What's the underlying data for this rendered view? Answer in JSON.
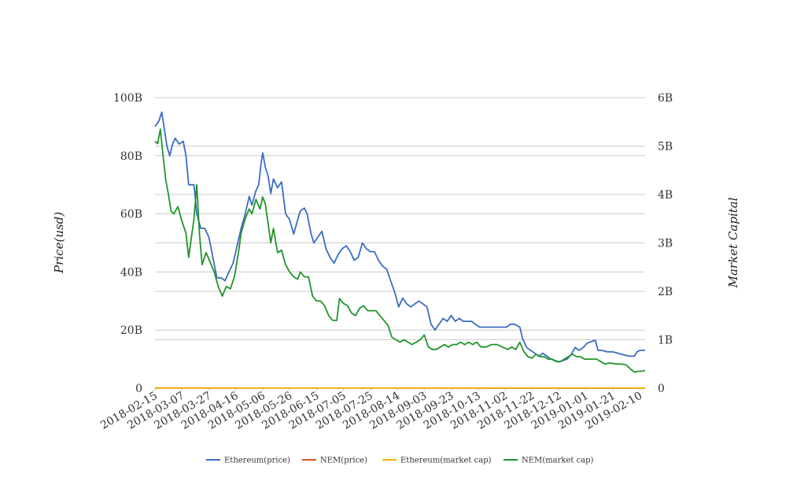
{
  "chart_data": {
    "type": "line",
    "y_left_label": "Price(usd)",
    "y_right_label": "Market Capital",
    "y_left_ticks": [
      "0",
      "20B",
      "40B",
      "60B",
      "80B",
      "100B"
    ],
    "y_right_ticks": [
      "0",
      "1B",
      "2B",
      "3B",
      "4B",
      "5B",
      "6B"
    ],
    "y_left_range": [
      0,
      100
    ],
    "y_right_range": [
      0,
      6
    ],
    "x_range": [
      "2018-02-15",
      "2019-02-14"
    ],
    "x_ticks": [
      "2018-02-15",
      "2018-03-07",
      "2018-03-27",
      "2018-04-16",
      "2018-05-06",
      "2018-05-26",
      "2018-06-15",
      "2018-07-05",
      "2018-07-25",
      "2018-08-14",
      "2018-09-03",
      "2018-09-23",
      "2018-10-13",
      "2018-11-02",
      "2018-11-22",
      "2018-12-12",
      "2019-01-01",
      "2019-01-21",
      "2019-02-10"
    ],
    "grid": true,
    "legend_position": "bottom",
    "units_note": "left axis values in billions USD; right axis values in billions",
    "series": [
      {
        "name": "Ethereum(price)",
        "axis": "left",
        "color": "#3b6cc2",
        "points": [
          [
            "2018-02-15",
            90
          ],
          [
            "2018-02-18",
            92
          ],
          [
            "2018-02-20",
            95
          ],
          [
            "2018-02-22",
            89
          ],
          [
            "2018-02-24",
            83
          ],
          [
            "2018-02-26",
            80
          ],
          [
            "2018-02-28",
            84
          ],
          [
            "2018-03-02",
            86
          ],
          [
            "2018-03-05",
            84
          ],
          [
            "2018-03-08",
            85
          ],
          [
            "2018-03-10",
            80
          ],
          [
            "2018-03-12",
            70
          ],
          [
            "2018-03-14",
            70
          ],
          [
            "2018-03-16",
            70
          ],
          [
            "2018-03-18",
            60
          ],
          [
            "2018-03-21",
            55
          ],
          [
            "2018-03-24",
            55
          ],
          [
            "2018-03-27",
            52
          ],
          [
            "2018-03-30",
            45
          ],
          [
            "2018-04-02",
            38
          ],
          [
            "2018-04-05",
            38
          ],
          [
            "2018-04-08",
            37
          ],
          [
            "2018-04-11",
            40
          ],
          [
            "2018-04-14",
            43
          ],
          [
            "2018-04-17",
            49
          ],
          [
            "2018-04-20",
            55
          ],
          [
            "2018-04-23",
            60
          ],
          [
            "2018-04-26",
            66
          ],
          [
            "2018-04-28",
            63
          ],
          [
            "2018-05-01",
            68
          ],
          [
            "2018-05-03",
            70
          ],
          [
            "2018-05-05",
            78
          ],
          [
            "2018-05-06",
            81
          ],
          [
            "2018-05-08",
            76
          ],
          [
            "2018-05-10",
            73
          ],
          [
            "2018-05-12",
            67
          ],
          [
            "2018-05-14",
            72
          ],
          [
            "2018-05-17",
            69
          ],
          [
            "2018-05-20",
            71
          ],
          [
            "2018-05-23",
            60
          ],
          [
            "2018-05-26",
            58
          ],
          [
            "2018-05-29",
            53
          ],
          [
            "2018-06-01",
            58
          ],
          [
            "2018-06-03",
            61
          ],
          [
            "2018-06-06",
            62
          ],
          [
            "2018-06-08",
            60
          ],
          [
            "2018-06-11",
            53
          ],
          [
            "2018-06-13",
            50
          ],
          [
            "2018-06-16",
            52
          ],
          [
            "2018-06-19",
            54
          ],
          [
            "2018-06-22",
            48
          ],
          [
            "2018-06-25",
            45
          ],
          [
            "2018-06-28",
            43
          ],
          [
            "2018-07-01",
            46
          ],
          [
            "2018-07-04",
            48
          ],
          [
            "2018-07-07",
            49
          ],
          [
            "2018-07-10",
            47
          ],
          [
            "2018-07-13",
            44
          ],
          [
            "2018-07-16",
            45
          ],
          [
            "2018-07-19",
            50
          ],
          [
            "2018-07-22",
            48
          ],
          [
            "2018-07-25",
            47
          ],
          [
            "2018-07-28",
            47
          ],
          [
            "2018-07-31",
            44
          ],
          [
            "2018-08-03",
            42
          ],
          [
            "2018-08-06",
            41
          ],
          [
            "2018-08-09",
            37
          ],
          [
            "2018-08-12",
            33
          ],
          [
            "2018-08-15",
            28
          ],
          [
            "2018-08-18",
            31
          ],
          [
            "2018-08-21",
            29
          ],
          [
            "2018-08-24",
            28
          ],
          [
            "2018-08-27",
            29
          ],
          [
            "2018-08-30",
            30
          ],
          [
            "2018-09-02",
            29
          ],
          [
            "2018-09-05",
            28
          ],
          [
            "2018-09-08",
            22
          ],
          [
            "2018-09-11",
            20
          ],
          [
            "2018-09-14",
            22
          ],
          [
            "2018-09-17",
            24
          ],
          [
            "2018-09-20",
            23
          ],
          [
            "2018-09-23",
            25
          ],
          [
            "2018-09-26",
            23
          ],
          [
            "2018-09-29",
            24
          ],
          [
            "2018-10-02",
            23
          ],
          [
            "2018-10-05",
            23
          ],
          [
            "2018-10-08",
            23
          ],
          [
            "2018-10-11",
            22
          ],
          [
            "2018-10-14",
            21
          ],
          [
            "2018-10-18",
            21
          ],
          [
            "2018-10-22",
            21
          ],
          [
            "2018-10-26",
            21
          ],
          [
            "2018-10-30",
            21
          ],
          [
            "2018-11-03",
            21
          ],
          [
            "2018-11-06",
            22
          ],
          [
            "2018-11-09",
            22
          ],
          [
            "2018-11-13",
            21
          ],
          [
            "2018-11-15",
            17
          ],
          [
            "2018-11-18",
            14
          ],
          [
            "2018-11-21",
            13
          ],
          [
            "2018-11-24",
            12
          ],
          [
            "2018-11-27",
            11
          ],
          [
            "2018-11-30",
            12
          ],
          [
            "2018-12-03",
            11
          ],
          [
            "2018-12-06",
            10
          ],
          [
            "2018-12-09",
            9.5
          ],
          [
            "2018-12-12",
            9
          ],
          [
            "2018-12-15",
            9.5
          ],
          [
            "2018-12-18",
            10
          ],
          [
            "2018-12-21",
            11.5
          ],
          [
            "2018-12-24",
            14
          ],
          [
            "2018-12-27",
            13
          ],
          [
            "2018-12-30",
            14
          ],
          [
            "2019-01-02",
            15.5
          ],
          [
            "2019-01-05",
            16
          ],
          [
            "2019-01-08",
            16.5
          ],
          [
            "2019-01-10",
            13
          ],
          [
            "2019-01-13",
            13
          ],
          [
            "2019-01-17",
            12.5
          ],
          [
            "2019-01-21",
            12.5
          ],
          [
            "2019-01-25",
            12
          ],
          [
            "2019-01-29",
            11.5
          ],
          [
            "2019-02-02",
            11
          ],
          [
            "2019-02-06",
            11
          ],
          [
            "2019-02-08",
            12.5
          ],
          [
            "2019-02-10",
            13
          ],
          [
            "2019-02-14",
            13
          ]
        ]
      },
      {
        "name": "NEM(price)",
        "axis": "left",
        "color": "#d9541e",
        "points": [
          [
            "2018-02-15",
            0.05
          ],
          [
            "2019-02-14",
            0.01
          ]
        ]
      },
      {
        "name": "Ethereum(market cap)",
        "axis": "right",
        "color": "#f0b400",
        "points": [
          [
            "2018-02-15",
            0.005
          ],
          [
            "2019-02-14",
            0.002
          ]
        ]
      },
      {
        "name": "NEM(market cap)",
        "axis": "right",
        "color": "#21942a",
        "points": [
          [
            "2018-02-15",
            5.1
          ],
          [
            "2018-02-17",
            5.05
          ],
          [
            "2018-02-19",
            5.35
          ],
          [
            "2018-02-21",
            4.8
          ],
          [
            "2018-02-23",
            4.3
          ],
          [
            "2018-02-25",
            4.0
          ],
          [
            "2018-02-27",
            3.65
          ],
          [
            "2018-03-01",
            3.6
          ],
          [
            "2018-03-04",
            3.75
          ],
          [
            "2018-03-07",
            3.45
          ],
          [
            "2018-03-10",
            3.2
          ],
          [
            "2018-03-12",
            2.7
          ],
          [
            "2018-03-14",
            3.1
          ],
          [
            "2018-03-16",
            3.5
          ],
          [
            "2018-03-18",
            4.2
          ],
          [
            "2018-03-20",
            3.2
          ],
          [
            "2018-03-22",
            2.55
          ],
          [
            "2018-03-25",
            2.8
          ],
          [
            "2018-03-28",
            2.6
          ],
          [
            "2018-03-31",
            2.4
          ],
          [
            "2018-04-03",
            2.1
          ],
          [
            "2018-04-06",
            1.9
          ],
          [
            "2018-04-09",
            2.1
          ],
          [
            "2018-04-12",
            2.05
          ],
          [
            "2018-04-15",
            2.3
          ],
          [
            "2018-04-18",
            2.8
          ],
          [
            "2018-04-20",
            3.2
          ],
          [
            "2018-04-23",
            3.5
          ],
          [
            "2018-04-26",
            3.7
          ],
          [
            "2018-04-28",
            3.6
          ],
          [
            "2018-05-01",
            3.9
          ],
          [
            "2018-05-04",
            3.7
          ],
          [
            "2018-05-06",
            3.95
          ],
          [
            "2018-05-08",
            3.8
          ],
          [
            "2018-05-10",
            3.4
          ],
          [
            "2018-05-12",
            3.0
          ],
          [
            "2018-05-14",
            3.3
          ],
          [
            "2018-05-17",
            2.8
          ],
          [
            "2018-05-20",
            2.85
          ],
          [
            "2018-05-23",
            2.55
          ],
          [
            "2018-05-26",
            2.4
          ],
          [
            "2018-05-29",
            2.3
          ],
          [
            "2018-06-01",
            2.25
          ],
          [
            "2018-06-03",
            2.4
          ],
          [
            "2018-06-06",
            2.3
          ],
          [
            "2018-06-09",
            2.3
          ],
          [
            "2018-06-12",
            1.9
          ],
          [
            "2018-06-15",
            1.8
          ],
          [
            "2018-06-18",
            1.8
          ],
          [
            "2018-06-21",
            1.7
          ],
          [
            "2018-06-24",
            1.5
          ],
          [
            "2018-06-27",
            1.4
          ],
          [
            "2018-06-30",
            1.4
          ],
          [
            "2018-07-02",
            1.85
          ],
          [
            "2018-07-05",
            1.75
          ],
          [
            "2018-07-08",
            1.7
          ],
          [
            "2018-07-11",
            1.55
          ],
          [
            "2018-07-14",
            1.5
          ],
          [
            "2018-07-17",
            1.65
          ],
          [
            "2018-07-20",
            1.7
          ],
          [
            "2018-07-23",
            1.6
          ],
          [
            "2018-07-26",
            1.6
          ],
          [
            "2018-07-29",
            1.6
          ],
          [
            "2018-08-01",
            1.5
          ],
          [
            "2018-08-04",
            1.4
          ],
          [
            "2018-08-07",
            1.3
          ],
          [
            "2018-08-10",
            1.05
          ],
          [
            "2018-08-13",
            1.0
          ],
          [
            "2018-08-16",
            0.95
          ],
          [
            "2018-08-19",
            1.0
          ],
          [
            "2018-08-22",
            0.95
          ],
          [
            "2018-08-25",
            0.9
          ],
          [
            "2018-08-28",
            0.95
          ],
          [
            "2018-08-31",
            1.0
          ],
          [
            "2018-09-03",
            1.1
          ],
          [
            "2018-09-06",
            0.85
          ],
          [
            "2018-09-09",
            0.8
          ],
          [
            "2018-09-12",
            0.8
          ],
          [
            "2018-09-15",
            0.85
          ],
          [
            "2018-09-18",
            0.9
          ],
          [
            "2018-09-21",
            0.85
          ],
          [
            "2018-09-24",
            0.9
          ],
          [
            "2018-09-27",
            0.9
          ],
          [
            "2018-09-30",
            0.95
          ],
          [
            "2018-10-03",
            0.9
          ],
          [
            "2018-10-06",
            0.95
          ],
          [
            "2018-10-09",
            0.9
          ],
          [
            "2018-10-12",
            0.95
          ],
          [
            "2018-10-15",
            0.85
          ],
          [
            "2018-10-19",
            0.85
          ],
          [
            "2018-10-23",
            0.9
          ],
          [
            "2018-10-27",
            0.9
          ],
          [
            "2018-10-31",
            0.85
          ],
          [
            "2018-11-04",
            0.8
          ],
          [
            "2018-11-07",
            0.85
          ],
          [
            "2018-11-10",
            0.8
          ],
          [
            "2018-11-13",
            0.95
          ],
          [
            "2018-11-16",
            0.75
          ],
          [
            "2018-11-19",
            0.65
          ],
          [
            "2018-11-22",
            0.62
          ],
          [
            "2018-11-25",
            0.7
          ],
          [
            "2018-11-28",
            0.65
          ],
          [
            "2018-12-01",
            0.65
          ],
          [
            "2018-12-04",
            0.6
          ],
          [
            "2018-12-07",
            0.6
          ],
          [
            "2018-12-10",
            0.55
          ],
          [
            "2018-12-13",
            0.55
          ],
          [
            "2018-12-16",
            0.6
          ],
          [
            "2018-12-19",
            0.65
          ],
          [
            "2018-12-22",
            0.7
          ],
          [
            "2018-12-25",
            0.65
          ],
          [
            "2018-12-28",
            0.65
          ],
          [
            "2018-12-31",
            0.6
          ],
          [
            "2019-01-03",
            0.6
          ],
          [
            "2019-01-06",
            0.6
          ],
          [
            "2019-01-09",
            0.6
          ],
          [
            "2019-01-12",
            0.55
          ],
          [
            "2019-01-15",
            0.5
          ],
          [
            "2019-01-19",
            0.52
          ],
          [
            "2019-01-23",
            0.5
          ],
          [
            "2019-01-27",
            0.5
          ],
          [
            "2019-01-31",
            0.48
          ],
          [
            "2019-02-03",
            0.4
          ],
          [
            "2019-02-06",
            0.33
          ],
          [
            "2019-02-09",
            0.35
          ],
          [
            "2019-02-11",
            0.35
          ],
          [
            "2019-02-14",
            0.36
          ]
        ]
      }
    ]
  }
}
